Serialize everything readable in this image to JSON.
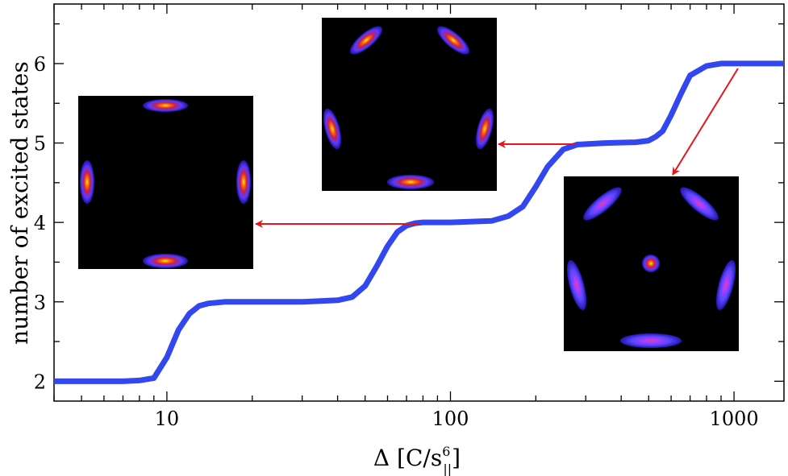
{
  "chart_data": {
    "type": "line",
    "xlabel": {
      "symbol": "Δ",
      "bracket_open": "[",
      "unit_main": "C/s",
      "unit_sup": "6",
      "unit_sub": "||",
      "bracket_close": "]"
    },
    "ylabel": "number of excited states",
    "xscale": "log",
    "xlim": [
      4,
      1500
    ],
    "ylim": [
      1.75,
      6.75
    ],
    "xticks": [
      10,
      100,
      1000
    ],
    "xtick_labels": [
      "10",
      "100",
      "1000"
    ],
    "yticks": [
      2,
      3,
      4,
      5,
      6
    ],
    "ytick_labels": [
      "2",
      "3",
      "4",
      "5",
      "6"
    ],
    "grid": false,
    "series": [
      {
        "color": "#3347f0",
        "x": [
          4,
          5,
          6,
          7,
          8,
          9,
          10,
          11,
          12,
          13,
          14,
          16,
          20,
          30,
          40,
          45,
          50,
          55,
          60,
          65,
          70,
          75,
          80,
          100,
          140,
          160,
          180,
          200,
          220,
          250,
          280,
          350,
          450,
          500,
          530,
          560,
          600,
          650,
          700,
          800,
          900,
          1000,
          1500
        ],
        "y": [
          2.0,
          2.0,
          2.0,
          2.0,
          2.01,
          2.04,
          2.3,
          2.65,
          2.85,
          2.95,
          2.98,
          3.0,
          3.0,
          3.0,
          3.02,
          3.06,
          3.2,
          3.45,
          3.7,
          3.88,
          3.96,
          3.99,
          4.0,
          4.0,
          4.02,
          4.08,
          4.2,
          4.45,
          4.7,
          4.92,
          4.98,
          5.0,
          5.01,
          5.03,
          5.08,
          5.15,
          5.35,
          5.62,
          5.85,
          5.97,
          6.0,
          6.0,
          6.0
        ]
      }
    ],
    "insets": [
      {
        "name": "4-state-density",
        "color_map": "black-blue-red-yellow",
        "pointing_to": {
          "x": 85,
          "y": 4
        }
      },
      {
        "name": "5-state-density",
        "color_map": "black-blue-red-yellow",
        "pointing_to": {
          "x": 350,
          "y": 5
        }
      },
      {
        "name": "6-state-density",
        "color_map": "black-blue-red-yellow",
        "pointing_to": {
          "x": 1000,
          "y": 6
        }
      }
    ],
    "colors": {
      "curve": "#3347f0",
      "arrows": "#e8141a",
      "inset_bg": "#000000"
    }
  }
}
